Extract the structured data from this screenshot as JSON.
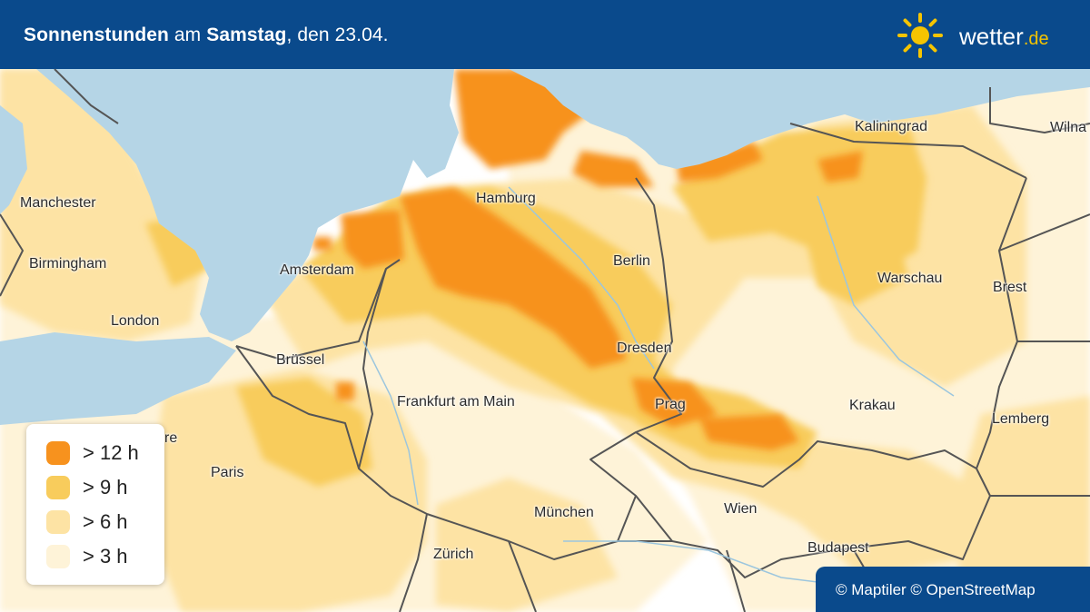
{
  "header": {
    "title_b1": "Sonnenstunden",
    "title_t1": " am ",
    "title_b2": "Samstag",
    "title_t2": ", den 23.04."
  },
  "logo": {
    "name": "wetter",
    "tld": ".de",
    "icon": "sun-icon"
  },
  "colors": {
    "header_bg": "#0a4a8c",
    "water": "#b5d5e6",
    "land": "#ffffff",
    "gt12": "#f7921e",
    "gt9": "#f8cc5c",
    "gt6": "#fde3a4",
    "gt3": "#fef3d8"
  },
  "cities": {
    "manchester": "Manchester",
    "birmingham": "Birmingham",
    "london": "London",
    "amsterdam": "Amsterdam",
    "bruessel": "Brüssel",
    "paris": "Paris",
    "hamburg": "Hamburg",
    "berlin": "Berlin",
    "dresden": "Dresden",
    "frankfurt": "Frankfurt am Main",
    "prag": "Prag",
    "muenchen": "München",
    "zuerich": "Zürich",
    "wien": "Wien",
    "budapest": "Budapest",
    "krakau": "Krakau",
    "warschau": "Warschau",
    "kaliningrad": "Kaliningrad",
    "wilna": "Wilna",
    "brest": "Brest",
    "lemberg": "Lemberg",
    "partial_re": "re"
  },
  "legend": [
    {
      "label": "> 12 h",
      "color": "#f7921e"
    },
    {
      "label": "> 9 h",
      "color": "#f8cc5c"
    },
    {
      "label": "> 6 h",
      "color": "#fde3a4"
    },
    {
      "label": "> 3 h",
      "color": "#fef3d8"
    }
  ],
  "attribution": "© Maptiler © OpenStreetMap"
}
